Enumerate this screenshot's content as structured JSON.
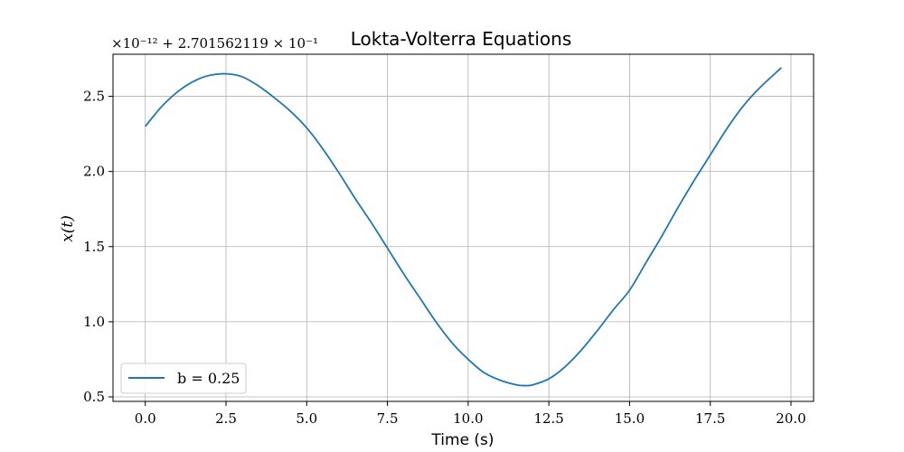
{
  "chart_data": {
    "type": "line",
    "title": "Lokta-Volterra Equations",
    "xlabel": "Time (s)",
    "ylabel": "x(t)",
    "offset_label": "×10⁻¹² + 2.701562119 × 10⁻¹",
    "xlim": [
      -1.0,
      20.7
    ],
    "ylim": [
      0.47,
      2.78
    ],
    "x_ticks": [
      0.0,
      2.5,
      5.0,
      7.5,
      10.0,
      12.5,
      15.0,
      17.5,
      20.0
    ],
    "x_tick_labels": [
      "0.0",
      "2.5",
      "5.0",
      "7.5",
      "10.0",
      "12.5",
      "15.0",
      "17.5",
      "20.0"
    ],
    "y_ticks": [
      0.5,
      1.0,
      1.5,
      2.0,
      2.5
    ],
    "y_tick_labels": [
      "0.5",
      "1.0",
      "1.5",
      "2.0",
      "2.5"
    ],
    "grid": true,
    "legend_position": "lower-left",
    "series": [
      {
        "name": "b = 0.25",
        "color": "#1f77b4",
        "x": [
          0.0,
          0.5,
          1.0,
          1.5,
          2.0,
          2.5,
          3.0,
          3.5,
          4.0,
          4.5,
          5.0,
          5.5,
          6.0,
          6.5,
          7.0,
          7.5,
          8.0,
          8.5,
          9.0,
          9.5,
          10.0,
          10.5,
          11.0,
          11.5,
          11.75,
          12.0,
          12.5,
          13.0,
          13.5,
          14.0,
          14.5,
          15.0,
          15.5,
          16.0,
          16.5,
          17.0,
          17.5,
          18.0,
          18.5,
          19.0,
          19.7
        ],
        "y": [
          2.3,
          2.43,
          2.53,
          2.6,
          2.64,
          2.65,
          2.63,
          2.57,
          2.49,
          2.4,
          2.29,
          2.15,
          1.99,
          1.82,
          1.66,
          1.49,
          1.32,
          1.16,
          1.0,
          0.86,
          0.75,
          0.66,
          0.61,
          0.58,
          0.575,
          0.58,
          0.62,
          0.7,
          0.81,
          0.94,
          1.08,
          1.21,
          1.39,
          1.57,
          1.76,
          1.94,
          2.11,
          2.28,
          2.43,
          2.55,
          2.69
        ]
      }
    ]
  }
}
